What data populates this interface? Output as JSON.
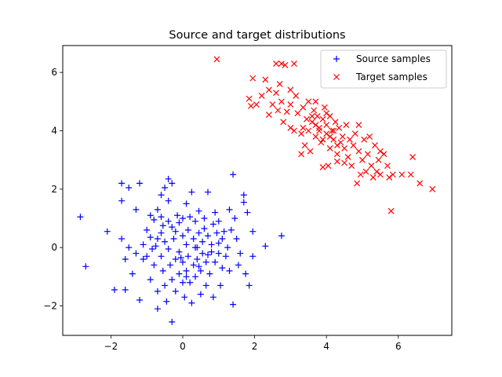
{
  "chart_data": {
    "type": "scatter",
    "title": "Source and target distributions",
    "xlabel": "",
    "ylabel": "",
    "xlim": [
      -3.34,
      7.49
    ],
    "ylim": [
      -3.01,
      6.92
    ],
    "xticks": [
      -2,
      0,
      2,
      4,
      6
    ],
    "yticks": [
      -2,
      0,
      2,
      4,
      6
    ],
    "xtick_labels": [
      "−2",
      "0",
      "2",
      "4",
      "6"
    ],
    "ytick_labels": [
      "−2",
      "0",
      "2",
      "4",
      "6"
    ],
    "grid": false,
    "legend_position": "upper right",
    "series": [
      {
        "name": "Source samples",
        "marker": "+",
        "color": "#0000ff",
        "points": [
          [
            -2.85,
            1.05
          ],
          [
            -2.7,
            -0.65
          ],
          [
            -2.1,
            0.55
          ],
          [
            -1.9,
            -1.45
          ],
          [
            -1.7,
            2.2
          ],
          [
            -1.7,
            1.6
          ],
          [
            -1.7,
            0.3
          ],
          [
            -1.6,
            -0.4
          ],
          [
            -1.6,
            -1.45
          ],
          [
            -1.5,
            2.05
          ],
          [
            -1.5,
            0.0
          ],
          [
            -1.4,
            -0.9
          ],
          [
            -1.3,
            -0.2
          ],
          [
            -1.3,
            1.3
          ],
          [
            -1.2,
            2.2
          ],
          [
            -1.2,
            -1.8
          ],
          [
            -1.1,
            0.1
          ],
          [
            -1.1,
            -0.4
          ],
          [
            -1.0,
            0.6
          ],
          [
            -1.0,
            -0.3
          ],
          [
            -0.9,
            1.1
          ],
          [
            -0.9,
            0.35
          ],
          [
            -0.9,
            -1.1
          ],
          [
            -0.8,
            0.95
          ],
          [
            -0.8,
            -0.6
          ],
          [
            -0.7,
            1.3
          ],
          [
            -0.7,
            0.3
          ],
          [
            -0.7,
            -1.5
          ],
          [
            -0.7,
            -2.1
          ],
          [
            -0.6,
            1.8
          ],
          [
            -0.6,
            1.05
          ],
          [
            -0.6,
            0.5
          ],
          [
            -0.6,
            -0.3
          ],
          [
            -0.55,
            -0.8
          ],
          [
            -0.5,
            2.05
          ],
          [
            -0.5,
            0.2
          ],
          [
            -0.5,
            -1.3
          ],
          [
            -0.45,
            -1.85
          ],
          [
            -0.4,
            2.35
          ],
          [
            -0.4,
            1.6
          ],
          [
            -0.4,
            0.9
          ],
          [
            -0.4,
            -0.05
          ],
          [
            -0.35,
            -0.6
          ],
          [
            -0.3,
            2.2
          ],
          [
            -0.3,
            0.7
          ],
          [
            -0.3,
            -1.1
          ],
          [
            -0.3,
            -2.55
          ],
          [
            -0.25,
            0.3
          ],
          [
            -0.2,
            -0.4
          ],
          [
            -0.2,
            -1.5
          ],
          [
            -0.15,
            1.1
          ],
          [
            -0.1,
            0.85
          ],
          [
            -0.1,
            -0.15
          ],
          [
            -0.1,
            -0.9
          ],
          [
            0.0,
            1.0
          ],
          [
            0.0,
            0.4
          ],
          [
            0.0,
            -0.5
          ],
          [
            0.0,
            -1.2
          ],
          [
            0.05,
            -1.7
          ],
          [
            0.1,
            1.5
          ],
          [
            0.1,
            0.1
          ],
          [
            0.1,
            -0.8
          ],
          [
            0.15,
            0.6
          ],
          [
            0.15,
            -0.3
          ],
          [
            0.2,
            1.05
          ],
          [
            0.2,
            -1.2
          ],
          [
            0.25,
            1.9
          ],
          [
            0.25,
            -1.9
          ],
          [
            0.3,
            0.3
          ],
          [
            0.3,
            -0.6
          ],
          [
            0.35,
            0.9
          ],
          [
            0.35,
            -1.0
          ],
          [
            0.4,
            0.0
          ],
          [
            0.4,
            -0.4
          ],
          [
            0.45,
            1.25
          ],
          [
            0.45,
            0.5
          ],
          [
            0.5,
            -0.8
          ],
          [
            0.5,
            -1.6
          ],
          [
            0.55,
            0.2
          ],
          [
            0.55,
            -0.2
          ],
          [
            0.6,
            1.0
          ],
          [
            0.6,
            0.65
          ],
          [
            0.65,
            -0.5
          ],
          [
            0.65,
            -1.3
          ],
          [
            0.7,
            0.4
          ],
          [
            0.7,
            1.9
          ],
          [
            0.75,
            -0.9
          ],
          [
            0.8,
            0.1
          ],
          [
            0.8,
            -0.15
          ],
          [
            0.85,
            0.8
          ],
          [
            0.85,
            -1.7
          ],
          [
            0.9,
            1.2
          ],
          [
            0.9,
            -0.5
          ],
          [
            0.95,
            0.5
          ],
          [
            1.0,
            -0.2
          ],
          [
            1.0,
            0.9
          ],
          [
            1.05,
            -1.3
          ],
          [
            1.1,
            0.3
          ],
          [
            1.1,
            -0.7
          ],
          [
            1.15,
            0.55
          ],
          [
            1.2,
            -0.3
          ],
          [
            1.25,
            0.0
          ],
          [
            1.3,
            1.3
          ],
          [
            1.3,
            -0.8
          ],
          [
            1.35,
            0.6
          ],
          [
            1.4,
            2.5
          ],
          [
            1.4,
            -1.95
          ],
          [
            1.45,
            1.0
          ],
          [
            1.5,
            0.3
          ],
          [
            1.55,
            -0.6
          ],
          [
            1.6,
            -0.2
          ],
          [
            1.7,
            1.8
          ],
          [
            1.7,
            1.55
          ],
          [
            1.75,
            -0.9
          ],
          [
            1.8,
            1.2
          ],
          [
            1.85,
            -1.3
          ],
          [
            1.95,
            0.55
          ],
          [
            1.95,
            -0.3
          ],
          [
            2.3,
            0.05
          ],
          [
            2.75,
            0.4
          ],
          [
            -0.85,
            -0.05
          ],
          [
            -0.2,
            0.55
          ],
          [
            0.1,
            -1.0
          ],
          [
            0.35,
            0.0
          ],
          [
            -0.55,
            0.75
          ],
          [
            0.7,
            -0.25
          ],
          [
            1.0,
            0.15
          ],
          [
            -0.05,
            -0.35
          ],
          [
            0.45,
            -0.65
          ],
          [
            -0.75,
            0.05
          ]
        ]
      },
      {
        "name": "Target samples",
        "marker": "x",
        "color": "#ff0000",
        "points": [
          [
            0.95,
            6.45
          ],
          [
            1.95,
            5.8
          ],
          [
            2.3,
            5.75
          ],
          [
            2.4,
            5.4
          ],
          [
            2.6,
            6.3
          ],
          [
            2.7,
            5.6
          ],
          [
            2.75,
            6.3
          ],
          [
            2.85,
            6.25
          ],
          [
            3.1,
            6.3
          ],
          [
            3.0,
            4.9
          ],
          [
            1.85,
            5.1
          ],
          [
            1.9,
            4.85
          ],
          [
            2.05,
            4.9
          ],
          [
            2.2,
            5.2
          ],
          [
            2.4,
            4.55
          ],
          [
            2.5,
            4.9
          ],
          [
            2.6,
            5.3
          ],
          [
            2.65,
            4.7
          ],
          [
            2.75,
            5.0
          ],
          [
            2.8,
            4.3
          ],
          [
            2.9,
            4.65
          ],
          [
            3.0,
            4.1
          ],
          [
            3.0,
            5.4
          ],
          [
            3.1,
            4.0
          ],
          [
            3.15,
            5.2
          ],
          [
            3.2,
            4.6
          ],
          [
            3.3,
            3.9
          ],
          [
            3.3,
            3.2
          ],
          [
            3.35,
            4.8
          ],
          [
            3.4,
            3.5
          ],
          [
            3.45,
            4.4
          ],
          [
            3.5,
            5.0
          ],
          [
            3.5,
            4.0
          ],
          [
            3.55,
            3.3
          ],
          [
            3.6,
            4.3
          ],
          [
            3.65,
            4.7
          ],
          [
            3.7,
            3.8
          ],
          [
            3.7,
            5.0
          ],
          [
            3.75,
            4.5
          ],
          [
            3.8,
            4.1
          ],
          [
            3.85,
            3.6
          ],
          [
            3.9,
            4.4
          ],
          [
            3.9,
            2.75
          ],
          [
            3.95,
            4.8
          ],
          [
            4.0,
            4.2
          ],
          [
            4.0,
            3.9
          ],
          [
            4.05,
            2.8
          ],
          [
            4.1,
            4.5
          ],
          [
            4.1,
            3.4
          ],
          [
            4.15,
            4.0
          ],
          [
            4.2,
            3.7
          ],
          [
            4.25,
            4.3
          ],
          [
            4.3,
            3.2
          ],
          [
            4.3,
            2.95
          ],
          [
            4.35,
            4.1
          ],
          [
            4.4,
            3.6
          ],
          [
            4.45,
            3.8
          ],
          [
            4.5,
            2.9
          ],
          [
            4.5,
            3.4
          ],
          [
            4.55,
            4.2
          ],
          [
            4.6,
            3.1
          ],
          [
            4.65,
            3.7
          ],
          [
            4.7,
            2.8
          ],
          [
            4.75,
            3.5
          ],
          [
            4.8,
            3.9
          ],
          [
            4.85,
            2.2
          ],
          [
            4.9,
            3.3
          ],
          [
            4.9,
            4.2
          ],
          [
            4.95,
            2.5
          ],
          [
            5.0,
            3.0
          ],
          [
            5.05,
            3.7
          ],
          [
            5.1,
            2.6
          ],
          [
            5.15,
            3.2
          ],
          [
            5.2,
            3.8
          ],
          [
            5.25,
            2.8
          ],
          [
            5.3,
            2.4
          ],
          [
            5.35,
            3.5
          ],
          [
            5.4,
            2.6
          ],
          [
            5.45,
            3.0
          ],
          [
            5.5,
            3.3
          ],
          [
            5.5,
            2.5
          ],
          [
            5.6,
            3.2
          ],
          [
            5.7,
            2.8
          ],
          [
            5.75,
            2.4
          ],
          [
            5.8,
            1.25
          ],
          [
            5.85,
            2.5
          ],
          [
            6.1,
            2.5
          ],
          [
            6.35,
            2.5
          ],
          [
            6.4,
            3.1
          ],
          [
            6.6,
            2.2
          ],
          [
            6.95,
            2.0
          ],
          [
            3.35,
            4.1
          ],
          [
            3.6,
            4.5
          ],
          [
            3.8,
            4.0
          ],
          [
            4.0,
            4.6
          ],
          [
            4.2,
            4.0
          ],
          [
            3.7,
            4.2
          ],
          [
            3.9,
            3.7
          ],
          [
            4.1,
            3.8
          ],
          [
            4.3,
            3.5
          ]
        ]
      }
    ]
  }
}
